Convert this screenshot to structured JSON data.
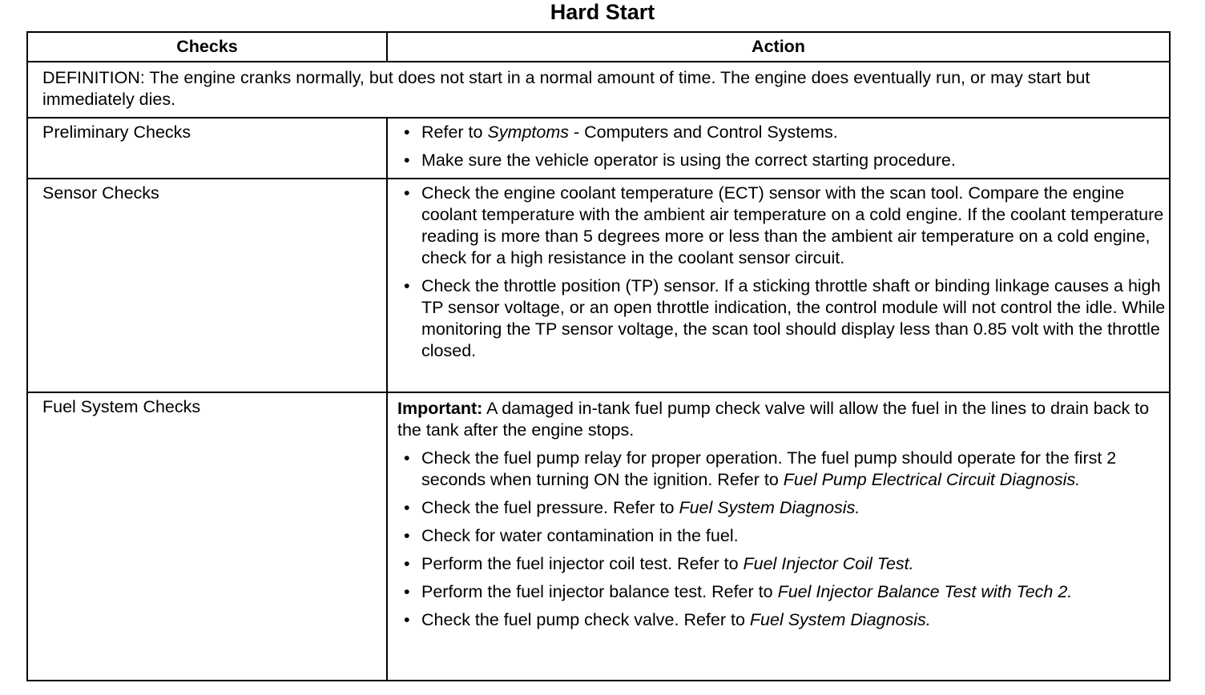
{
  "title": "Hard Start",
  "headers": {
    "checks": "Checks",
    "action": "Action"
  },
  "definition": "DEFINITION: The engine cranks normally, but does not start in a normal amount of time. The engine does eventually run, or may start but immediately dies.",
  "rows": [
    {
      "check": "Preliminary Checks",
      "bullets": [
        {
          "pre": "Refer to ",
          "ref": "Symptoms",
          "post": " - Computers  and  Control  Systems."
        },
        {
          "pre": "Make sure the vehicle operator is using the correct starting procedure.",
          "ref": "",
          "post": ""
        }
      ]
    },
    {
      "check": "Sensor Checks",
      "bullets": [
        {
          "pre": "Check the engine coolant temperature (ECT) sensor with the scan tool. Compare the engine coolant temperature with the ambient air temperature on a cold engine. If the coolant temperature reading is more than 5 degrees more or less than the ambient air temperature on a cold engine, check for a high resistance in the coolant sensor circuit.",
          "ref": "",
          "post": ""
        },
        {
          "pre": "Check the throttle position (TP) sensor. If a sticking throttle shaft or binding linkage causes a high TP sensor voltage, or an open throttle indication, the control module will not control the idle. While monitoring the TP sensor voltage, the scan tool should display less than 0.85 volt with the throttle closed.",
          "ref": "",
          "post": ""
        }
      ]
    },
    {
      "check": "Fuel System Checks",
      "important_label": "Important:",
      "important_text": " A damaged in-tank fuel pump check valve will allow the fuel in the lines to drain back to the tank after the engine stops.",
      "bullets": [
        {
          "pre": "Check the fuel pump relay for proper operation. The fuel pump should operate for the first 2 seconds when turning ON the ignition. Refer to ",
          "ref": "Fuel Pump Electrical Circuit Diagnosis.",
          "post": ""
        },
        {
          "pre": "Check the fuel pressure. Refer to ",
          "ref": "Fuel System Diagnosis.",
          "post": ""
        },
        {
          "pre": "Check for water contamination in the fuel.",
          "ref": "",
          "post": ""
        },
        {
          "pre": "Perform the fuel injector coil test. Refer to ",
          "ref": "Fuel Injector Coil Test.",
          "post": ""
        },
        {
          "pre": "Perform the fuel injector balance test. Refer to ",
          "ref": "Fuel Injector Balance Test with Tech 2.",
          "post": ""
        },
        {
          "pre": "Check the fuel pump check valve. Refer to ",
          "ref": "Fuel System Diagnosis.",
          "post": ""
        }
      ]
    }
  ]
}
